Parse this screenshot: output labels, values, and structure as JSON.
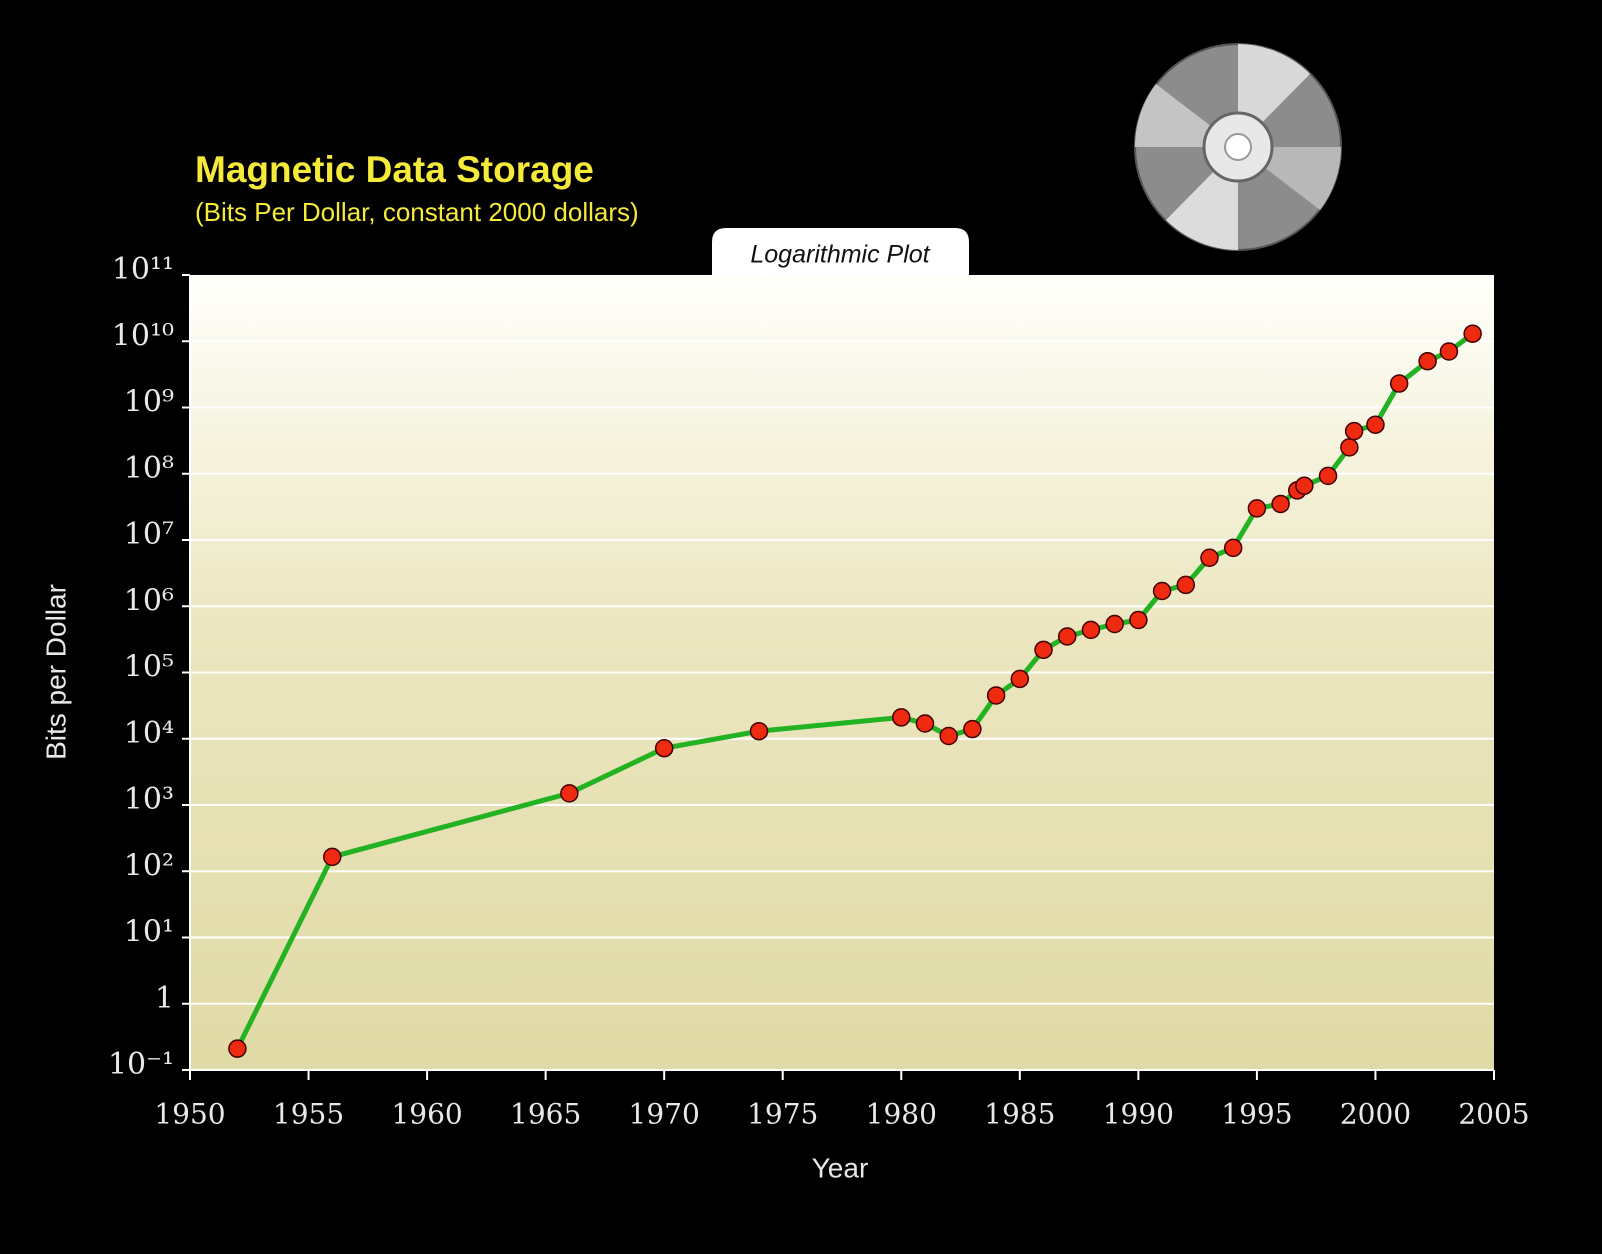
{
  "chart_data": {
    "type": "line",
    "title": "Magnetic Data Storage",
    "subtitle": "(Bits Per Dollar, constant 2000 dollars)",
    "annotation": "Logarithmic Plot",
    "x_label": "Year",
    "y_label": "Bits per Dollar",
    "yscale": "log",
    "grid": true,
    "line_color": "#22b222",
    "marker_color": "#ee2a10",
    "xlim": [
      1950,
      2005
    ],
    "xticks": [
      1950,
      1955,
      1960,
      1965,
      1970,
      1975,
      1980,
      1985,
      1990,
      1995,
      2000,
      2005
    ],
    "ylim": [
      0.1,
      100000000000
    ],
    "yticks": [
      {
        "value": 0.1,
        "label": "10⁻¹"
      },
      1,
      {
        "value": 10,
        "label": "10¹"
      },
      {
        "value": 100,
        "label": "10²"
      },
      {
        "value": 1000,
        "label": "10³"
      },
      {
        "value": 10000,
        "label": "10⁴"
      },
      {
        "value": 100000,
        "label": "10⁵"
      },
      {
        "value": 1000000,
        "label": "10⁶"
      },
      {
        "value": 10000000,
        "label": "10⁷"
      },
      {
        "value": 100000000,
        "label": "10⁸"
      },
      {
        "value": 1000000000,
        "label": "10⁹"
      },
      {
        "value": 10000000000,
        "label": "10¹⁰"
      },
      {
        "value": 100000000000,
        "label": "10¹¹"
      }
    ],
    "x": [
      1952,
      1956,
      1966,
      1970,
      1974,
      1980,
      1981,
      1982,
      1983,
      1984,
      1985,
      1986,
      1987,
      1988,
      1989,
      1990,
      1991,
      1992,
      1993,
      1994,
      1995,
      1996,
      1996.7,
      1997,
      1998,
      1998.9,
      1999.1,
      2000,
      2001,
      2002.2,
      2003.1,
      2004.1
    ],
    "values": [
      0.21,
      165,
      1500,
      7200,
      13000,
      21000,
      17000,
      11000,
      14000,
      45000,
      80000,
      220000,
      350000,
      440000,
      540000,
      620000,
      1700000,
      2100000,
      5400000,
      7600000,
      30000000,
      35000000,
      56000000,
      66000000,
      93000000,
      250000000,
      440000000,
      550000000,
      2300000000,
      5000000000,
      7000000000,
      13000000000
    ]
  }
}
